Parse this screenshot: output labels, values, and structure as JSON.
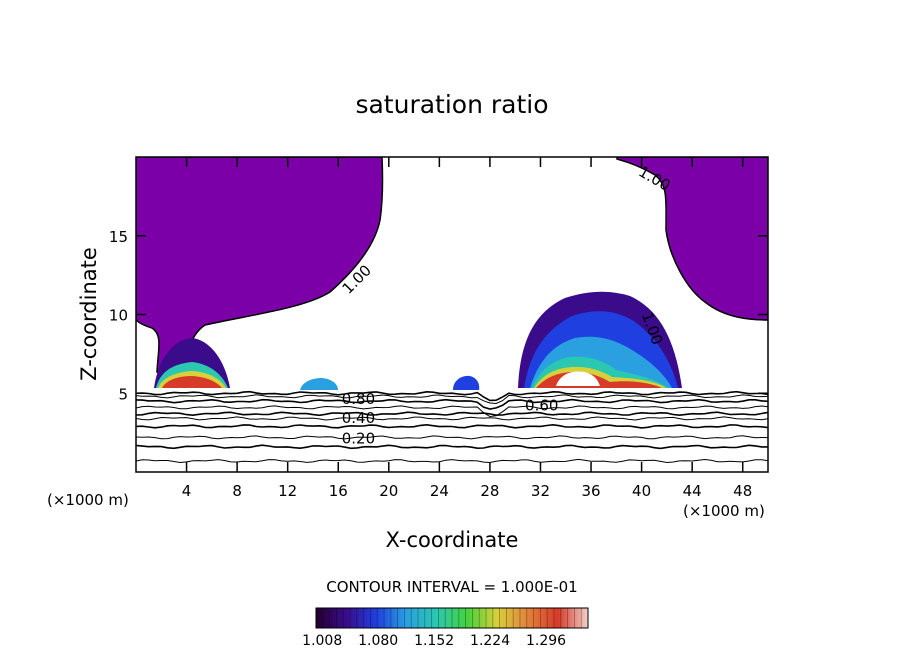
{
  "chart_data": {
    "type": "contour",
    "title": "saturation ratio",
    "xlabel": "X-coordinate",
    "ylabel": "Z-coordinate",
    "x_unit_left": "(×1000 m)",
    "x_unit_right": "(×1000 m)",
    "xlim": [
      0,
      50
    ],
    "ylim": [
      0,
      20
    ],
    "x_ticks": [
      4,
      8,
      12,
      16,
      20,
      24,
      28,
      32,
      36,
      40,
      44,
      48
    ],
    "y_ticks": [
      5,
      10,
      15
    ],
    "contour_interval_text": "CONTOUR INTERVAL = 1.000E-01",
    "contour_labels": [
      {
        "text": "1.00",
        "x": 17.5,
        "z": 12.2,
        "angle": -45
      },
      {
        "text": "1.00",
        "x": 41.0,
        "z": 18.6,
        "angle": 30
      },
      {
        "text": "1.00",
        "x": 40.8,
        "z": 9.1,
        "angle": 70
      },
      {
        "text": "0.80",
        "x": 17.6,
        "z": 4.6,
        "angle": 0
      },
      {
        "text": "0.60",
        "x": 32.1,
        "z": 4.2,
        "angle": 0
      },
      {
        "text": "0.40",
        "x": 17.6,
        "z": 3.4,
        "angle": 0
      },
      {
        "text": "0.20",
        "x": 17.6,
        "z": 2.1,
        "angle": 0
      }
    ],
    "stable_layer_contour_heights": [
      0.7,
      1.6,
      2.2,
      2.9,
      3.4,
      3.7,
      4.1,
      4.5,
      4.8,
      5.0
    ],
    "colorbar": {
      "min": 1.0,
      "max": 1.35,
      "tick_labels": [
        "1.008",
        "1.080",
        "1.152",
        "1.224",
        "1.296"
      ]
    },
    "colors": {
      "saturated": "#7b00a8",
      "bar_stops": [
        "#23002e",
        "#3a0c8c",
        "#1f3fe0",
        "#2aa0e0",
        "#2ac8b0",
        "#46d23c",
        "#d8d03a",
        "#e2823a",
        "#d83a2a",
        "#f0d0c8"
      ]
    }
  }
}
